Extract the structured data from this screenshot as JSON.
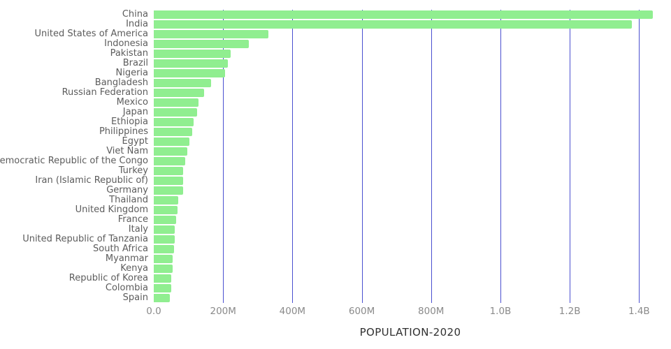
{
  "chart_data": {
    "type": "bar",
    "orientation": "horizontal",
    "title": "",
    "xlabel": "POPULATION-2020",
    "ylabel": "",
    "unit": "millions of people",
    "xlim": [
      0,
      1480
    ],
    "grid": true,
    "legend": "none",
    "categories": [
      "China",
      "India",
      "United States of America",
      "Indonesia",
      "Pakistan",
      "Brazil",
      "Nigeria",
      "Bangladesh",
      "Russian Federation",
      "Mexico",
      "Japan",
      "Ethiopia",
      "Philippines",
      "Egypt",
      "Viet Nam",
      "Democratic Republic of the Congo",
      "Turkey",
      "Iran (Islamic Republic of)",
      "Germany",
      "Thailand",
      "United Kingdom",
      "France",
      "Italy",
      "United Republic of Tanzania",
      "South Africa",
      "Myanmar",
      "Kenya",
      "Republic of Korea",
      "Colombia",
      "Spain"
    ],
    "values": [
      1439,
      1380,
      331,
      274,
      221,
      213,
      206,
      165,
      146,
      129,
      126,
      115,
      110,
      102,
      97,
      90,
      84,
      84,
      84,
      70,
      68,
      65,
      60,
      60,
      59,
      54,
      54,
      51,
      51,
      47
    ],
    "x_ticks": [
      {
        "value": 0,
        "label": "0.0"
      },
      {
        "value": 200,
        "label": "200M"
      },
      {
        "value": 400,
        "label": "400M"
      },
      {
        "value": 600,
        "label": "600M"
      },
      {
        "value": 800,
        "label": "800M"
      },
      {
        "value": 1000,
        "label": "1.0B"
      },
      {
        "value": 1200,
        "label": "1.2B"
      },
      {
        "value": 1400,
        "label": "1.4B"
      }
    ],
    "grid_values": [
      200,
      400,
      600,
      800,
      1000,
      1200,
      1400
    ]
  },
  "style": {
    "bar_color": "#90ee90",
    "grid_color": "#4a50d0",
    "tick_color": "#8a8a8a",
    "label_color": "#5c5c5c",
    "title_color": "#303030",
    "background_color": "#ffffff"
  }
}
